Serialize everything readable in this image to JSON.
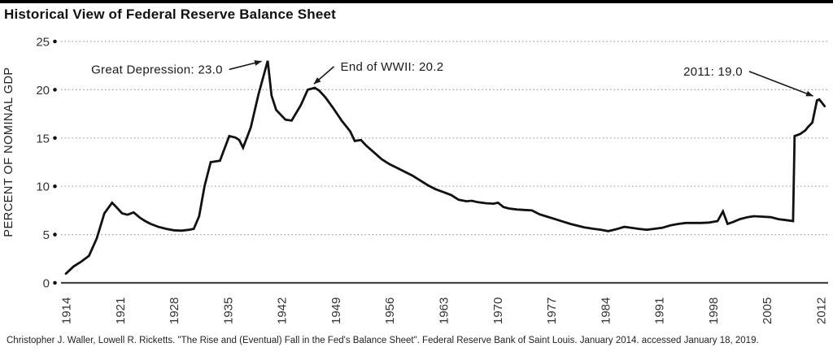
{
  "page": {
    "source_citation": "Christopher J. Waller, Lowell R. Ricketts. \"The Rise and (Eventual) Fall in the Fed's Balance Sheet\". Federal Reserve Bank of Saint Louis. January 2014. accessed January 18, 2019."
  },
  "chart_data": {
    "type": "line",
    "title": "Historical View of Federal Reserve Balance Sheet",
    "xlabel": "",
    "ylabel": "PERCENT OF NOMINAL GDP",
    "x_ticks": [
      1914,
      1921,
      1928,
      1935,
      1942,
      1949,
      1956,
      1963,
      1970,
      1977,
      1984,
      1991,
      1998,
      2005,
      2012
    ],
    "y_ticks": [
      0,
      5,
      10,
      15,
      20,
      25
    ],
    "xlim": [
      1913.4,
      2013.0
    ],
    "ylim": [
      0,
      25
    ],
    "grid": "horizontal-dotted",
    "legend": "none",
    "colors": {
      "line": "#111111",
      "grid": "#a0a0a0",
      "axis": "#444444",
      "tick_dot": "#111111",
      "text": "#333333",
      "annotation": "#1a1a1a"
    },
    "series": [
      {
        "name": "PERCENT OF NOMINAL GDP",
        "points": [
          [
            1914,
            0.95
          ],
          [
            1915,
            1.7
          ],
          [
            1916,
            2.2
          ],
          [
            1917,
            2.8
          ],
          [
            1918,
            4.6
          ],
          [
            1919,
            7.2
          ],
          [
            1920,
            8.3
          ],
          [
            1920.6,
            7.8
          ],
          [
            1921.3,
            7.2
          ],
          [
            1922,
            7.05
          ],
          [
            1922.8,
            7.3
          ],
          [
            1923.6,
            6.75
          ],
          [
            1924.3,
            6.4
          ],
          [
            1925,
            6.1
          ],
          [
            1926,
            5.8
          ],
          [
            1927,
            5.6
          ],
          [
            1928,
            5.45
          ],
          [
            1929,
            5.4
          ],
          [
            1930,
            5.5
          ],
          [
            1930.6,
            5.6
          ],
          [
            1931.3,
            6.9
          ],
          [
            1932,
            10.0
          ],
          [
            1932.8,
            12.5
          ],
          [
            1934,
            12.65
          ],
          [
            1935.2,
            15.2
          ],
          [
            1936,
            15.05
          ],
          [
            1936.5,
            14.8
          ],
          [
            1937,
            14.0
          ],
          [
            1938,
            16.1
          ],
          [
            1939,
            19.5
          ],
          [
            1940.2,
            23.0
          ],
          [
            1940.7,
            19.4
          ],
          [
            1941.3,
            17.9
          ],
          [
            1942.5,
            16.9
          ],
          [
            1943.3,
            16.8
          ],
          [
            1944.5,
            18.4
          ],
          [
            1945.4,
            20.0
          ],
          [
            1946.3,
            20.2
          ],
          [
            1946.9,
            19.9
          ],
          [
            1947.7,
            19.2
          ],
          [
            1948.7,
            18.1
          ],
          [
            1949.8,
            16.8
          ],
          [
            1950.9,
            15.7
          ],
          [
            1951.5,
            14.7
          ],
          [
            1952.3,
            14.8
          ],
          [
            1953,
            14.2
          ],
          [
            1954,
            13.5
          ],
          [
            1955,
            12.8
          ],
          [
            1956,
            12.3
          ],
          [
            1957,
            11.9
          ],
          [
            1958,
            11.5
          ],
          [
            1959,
            11.1
          ],
          [
            1960,
            10.6
          ],
          [
            1961,
            10.1
          ],
          [
            1962,
            9.7
          ],
          [
            1963,
            9.4
          ],
          [
            1964,
            9.1
          ],
          [
            1965,
            8.6
          ],
          [
            1966,
            8.45
          ],
          [
            1966.7,
            8.5
          ],
          [
            1967.5,
            8.35
          ],
          [
            1968.5,
            8.25
          ],
          [
            1969.5,
            8.2
          ],
          [
            1970.1,
            8.3
          ],
          [
            1970.8,
            7.85
          ],
          [
            1971.5,
            7.7
          ],
          [
            1972.5,
            7.6
          ],
          [
            1973.5,
            7.55
          ],
          [
            1974.5,
            7.5
          ],
          [
            1975.5,
            7.1
          ],
          [
            1976.5,
            6.85
          ],
          [
            1977.5,
            6.6
          ],
          [
            1978.5,
            6.35
          ],
          [
            1979.5,
            6.1
          ],
          [
            1980.5,
            5.9
          ],
          [
            1981.3,
            5.75
          ],
          [
            1982.5,
            5.6
          ],
          [
            1983.5,
            5.5
          ],
          [
            1984.4,
            5.35
          ],
          [
            1985.4,
            5.55
          ],
          [
            1986.5,
            5.8
          ],
          [
            1987.4,
            5.7
          ],
          [
            1988.3,
            5.6
          ],
          [
            1989.4,
            5.5
          ],
          [
            1990.4,
            5.6
          ],
          [
            1991.4,
            5.7
          ],
          [
            1992.5,
            5.95
          ],
          [
            1993.5,
            6.1
          ],
          [
            1994.5,
            6.2
          ],
          [
            1995.5,
            6.2
          ],
          [
            1996.5,
            6.2
          ],
          [
            1997.5,
            6.25
          ],
          [
            1998.6,
            6.4
          ],
          [
            1999.3,
            7.4
          ],
          [
            1999.9,
            6.1
          ],
          [
            2000.6,
            6.3
          ],
          [
            2001.5,
            6.6
          ],
          [
            2002.5,
            6.8
          ],
          [
            2003.3,
            6.9
          ],
          [
            2004.5,
            6.85
          ],
          [
            2005.5,
            6.8
          ],
          [
            2006.5,
            6.6
          ],
          [
            2007.5,
            6.5
          ],
          [
            2008.4,
            6.4
          ],
          [
            2008.6,
            15.2
          ],
          [
            2009.3,
            15.4
          ],
          [
            2010,
            15.8
          ],
          [
            2010.3,
            16.1
          ],
          [
            2010.9,
            16.6
          ],
          [
            2011.5,
            18.9
          ],
          [
            2011.8,
            19.0
          ],
          [
            2012.1,
            18.7
          ],
          [
            2012.5,
            18.3
          ]
        ]
      }
    ],
    "annotations": [
      {
        "text": "Great Depression: 23.0",
        "tip": [
          1939.4,
          22.95
        ],
        "elbow": [
          1935.2,
          22.1
        ],
        "text_side": "left"
      },
      {
        "text": "End of WWII: 20.2",
        "tip": [
          1946.2,
          20.6
        ],
        "elbow": [
          1948.8,
          22.4
        ],
        "text_side": "right"
      },
      {
        "text": "2011: 19.0",
        "tip": [
          2011.0,
          19.35
        ],
        "elbow": [
          2002.7,
          21.9
        ],
        "text_side": "left"
      }
    ]
  }
}
